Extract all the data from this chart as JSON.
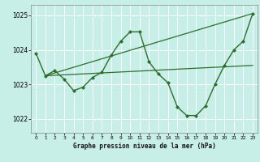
{
  "title": "Graphe pression niveau de la mer (hPa)",
  "background_color": "#c8eee8",
  "grid_color": "#ffffff",
  "line_color": "#2d6e2d",
  "xlim": [
    -0.5,
    23.5
  ],
  "ylim": [
    1021.6,
    1025.3
  ],
  "yticks": [
    1022,
    1023,
    1024,
    1025
  ],
  "xticks": [
    0,
    1,
    2,
    3,
    4,
    5,
    6,
    7,
    8,
    9,
    10,
    11,
    12,
    13,
    14,
    15,
    16,
    17,
    18,
    19,
    20,
    21,
    22,
    23
  ],
  "series_main": {
    "x": [
      0,
      1,
      2,
      3,
      4,
      5,
      6,
      7,
      8,
      9,
      10,
      11,
      12,
      13,
      14,
      15,
      16,
      17,
      18,
      19,
      20,
      21,
      22,
      23
    ],
    "y": [
      1023.9,
      1023.25,
      1023.4,
      1023.15,
      1022.82,
      1022.92,
      1023.2,
      1023.35,
      1023.85,
      1024.25,
      1024.52,
      1024.52,
      1023.65,
      1023.3,
      1023.05,
      1022.35,
      1022.1,
      1022.1,
      1022.38,
      1023.0,
      1023.55,
      1024.0,
      1024.25,
      1025.05
    ],
    "marker": "D",
    "markersize": 2.0,
    "linewidth": 1.0
  },
  "trend1": {
    "x": [
      1,
      23
    ],
    "y": [
      1023.25,
      1023.55
    ],
    "linewidth": 0.9
  },
  "trend2": {
    "x": [
      1,
      23
    ],
    "y": [
      1023.25,
      1025.05
    ],
    "linewidth": 0.9
  }
}
